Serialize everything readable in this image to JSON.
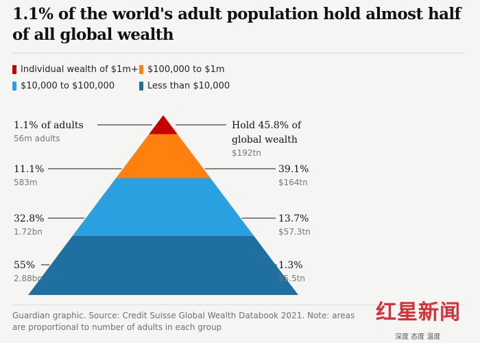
{
  "chart_data": {
    "type": "pyramid",
    "title": "1.1% of the world's adult population hold almost half of all global wealth",
    "legend": [
      {
        "label": "Individual wealth of $1m+",
        "color": "#c70000"
      },
      {
        "label": "$100,000 to $1m",
        "color": "#ff7f0f"
      },
      {
        "label": "$10,000 to $100,000",
        "color": "#2aa0e0"
      },
      {
        "label": "Less than $10,000",
        "color": "#1f6fa1"
      }
    ],
    "groups": [
      {
        "wealth_band": "Individual wealth of $1m+",
        "adults_pct": 1.1,
        "adults_pct_label": "1.1% of adults",
        "adults_count": "56m adults",
        "wealth_pct": 45.8,
        "wealth_pct_label": "Hold 45.8% of global wealth",
        "wealth_value": "$192tn",
        "color": "#c70000"
      },
      {
        "wealth_band": "$100,000 to $1m",
        "adults_pct": 11.1,
        "adults_pct_label": "11.1%",
        "adults_count": "583m",
        "wealth_pct": 39.1,
        "wealth_pct_label": "39.1%",
        "wealth_value": "$164tn",
        "color": "#ff7f0f"
      },
      {
        "wealth_band": "$10,000 to $100,000",
        "adults_pct": 32.8,
        "adults_pct_label": "32.8%",
        "adults_count": "1.72bn",
        "wealth_pct": 13.7,
        "wealth_pct_label": "13.7%",
        "wealth_value": "$57.3tn",
        "color": "#2aa0e0"
      },
      {
        "wealth_band": "Less than $10,000",
        "adults_pct": 55,
        "adults_pct_label": "55%",
        "adults_count": "2.88bn",
        "wealth_pct": 1.3,
        "wealth_pct_label": "1.3%",
        "wealth_value": "$5.5tn",
        "color": "#1f6fa1"
      }
    ],
    "note": "Guardian graphic. Source: Credit Suisse Global Wealth Databook 2021. Note: areas are proportional to number of adults in each group"
  },
  "watermark": {
    "logo": "红星新闻",
    "tagline": "深度 态度 温度"
  }
}
